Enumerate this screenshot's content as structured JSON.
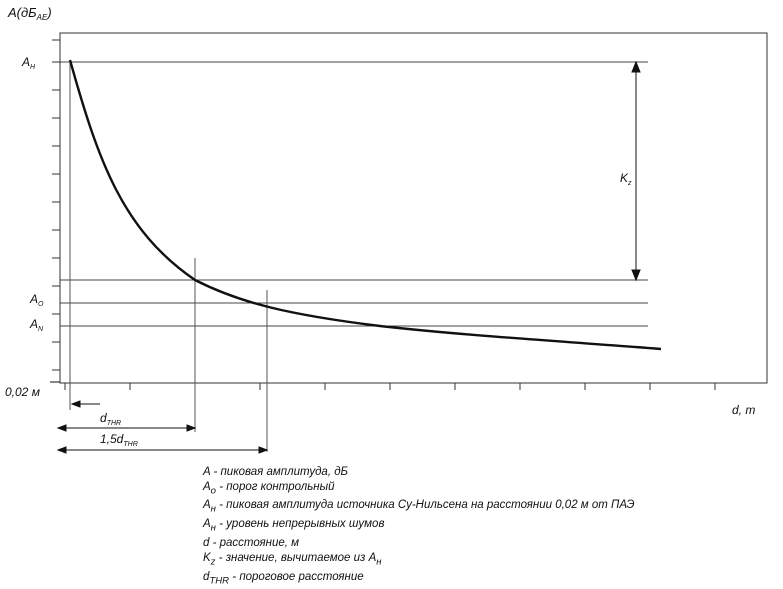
{
  "axes": {
    "y_label_main": "A(дБ",
    "y_label_sub": "AE",
    "y_label_close": ")",
    "x_label": "d, m"
  },
  "levels": {
    "a_h_top": {
      "main": "A",
      "sub": "H"
    },
    "a_o": {
      "main": "A",
      "sub": "O"
    },
    "a_n": {
      "main": "A",
      "sub": "N"
    }
  },
  "annotations": {
    "x_origin": "0,02 м",
    "kz": {
      "main": "K",
      "sub": "z"
    },
    "d_thr": {
      "main": "d",
      "sub": "THR"
    },
    "d_15": {
      "main": "1,5d",
      "sub": "THR"
    }
  },
  "legend": [
    {
      "main": "A - пиковая амплитуда, дБ"
    },
    {
      "main": "A",
      "sub": "o",
      "rest": " - порог контрольный"
    },
    {
      "main": "A",
      "sub": "н",
      "rest": " - пиковая амплитуда источника Су-Нильсена на расстоянии 0,02 м от ПАЭ"
    },
    {
      "main": "A",
      "sub": "н",
      "rest": " - уровень непрерывных шумов"
    },
    {
      "main": "d  - расстояние, м"
    },
    {
      "main": "K",
      "sub": "z",
      "rest": " - значение, вычитаемое из A",
      "sub2": "н"
    },
    {
      "main": "d",
      "sub": "THR",
      "rest": " - пороговое расстояние"
    }
  ],
  "colors": {
    "ink": "#111111",
    "line": "#444444"
  }
}
